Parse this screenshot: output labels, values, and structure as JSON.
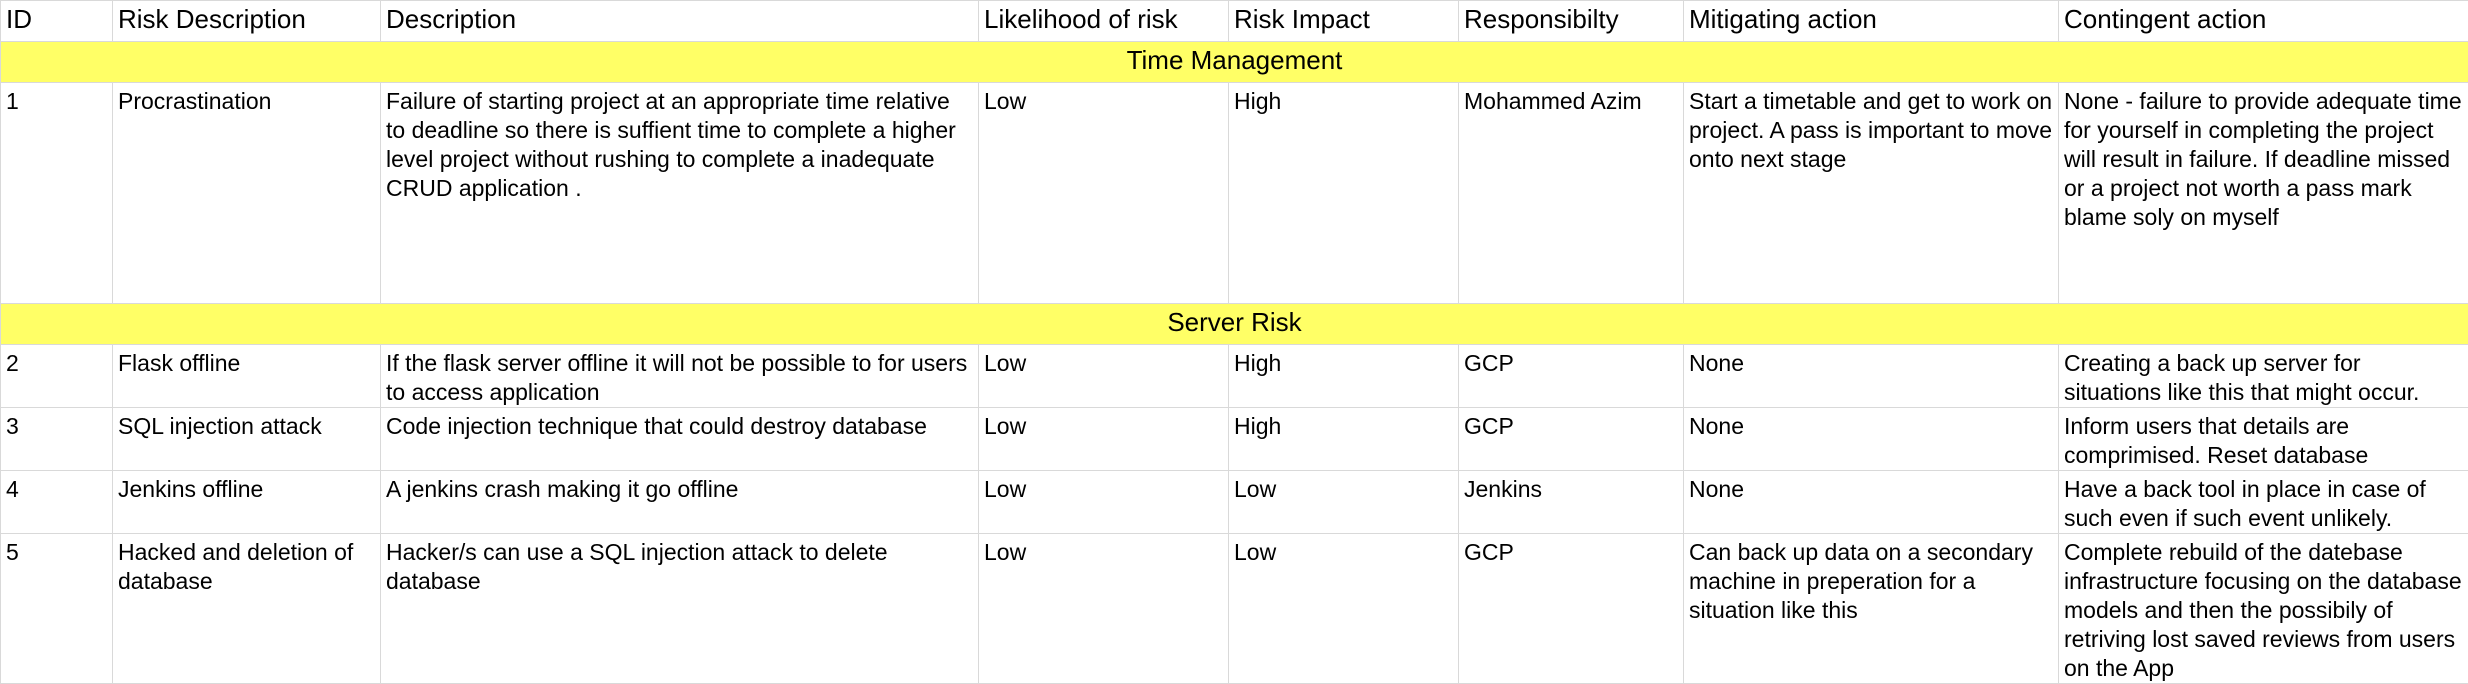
{
  "columns": [
    "ID",
    "Risk Description",
    "Description",
    "Likelihood of risk",
    "Risk Impact",
    "Responsibilty",
    "Mitigating action",
    "Contingent action"
  ],
  "sections": [
    {
      "title": "Time Management",
      "rows": [
        {
          "id": "1",
          "risk": "Procrastination",
          "description": "Failure of starting project at an appropriate time relative to deadline so there is suffient time to complete a higher level project without rushing to complete a inadequate  CRUD application .",
          "likelihood": "Low",
          "impact": "High",
          "responsibility": "Mohammed Azim",
          "mitigating": "Start a timetable and get to work on project. A pass is important to move onto next stage",
          "contingent": "None - failure to provide adequate time for yourself in completing the project will result in failure. If deadline missed or a project not worth a pass mark blame soly on myself"
        }
      ]
    },
    {
      "title": "Server Risk",
      "rows": [
        {
          "id": "2",
          "risk": "Flask offline",
          "description": "If the flask server offline it will not be possible to for users to access application",
          "likelihood": "Low",
          "impact": "High",
          "responsibility": "GCP",
          "mitigating": "None",
          "contingent": "Creating a back up server for situations like this that might occur."
        },
        {
          "id": "3",
          "risk": "SQL injection attack",
          "description": "Code injection technique that could destroy database",
          "likelihood": "Low",
          "impact": "High",
          "responsibility": "GCP",
          "mitigating": "None",
          "contingent": "Inform users that details are comprimised. Reset database"
        },
        {
          "id": "4",
          "risk": "Jenkins offline",
          "description": "A jenkins crash making it go offline",
          "likelihood": "Low",
          "impact": "Low",
          "responsibility": "Jenkins",
          "mitigating": "None",
          "contingent": "Have a back tool in place in case of such even if such event unlikely."
        },
        {
          "id": "5",
          "risk": "Hacked and deletion of database",
          "description": "Hacker/s can use a SQL injection attack to delete database",
          "likelihood": "Low",
          "impact": "Low",
          "responsibility": "GCP",
          "mitigating": "Can back up data on a secondary machine in preperation for a situation like this",
          "contingent": "Complete rebuild of the datebase infrastructure focusing on the database models and then the possibily of retriving lost saved reviews from users on the App"
        }
      ]
    }
  ]
}
